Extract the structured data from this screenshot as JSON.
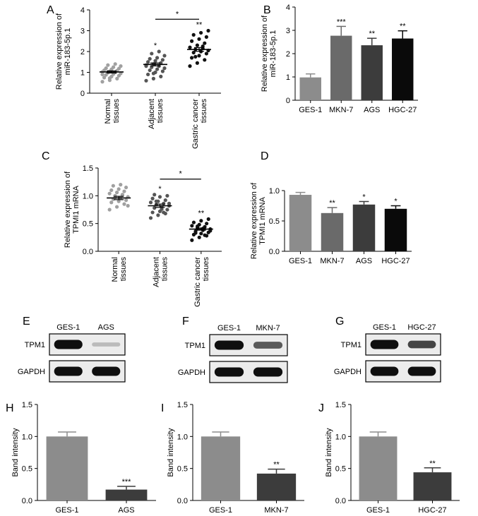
{
  "panel_letters": [
    "A",
    "B",
    "C",
    "D",
    "E",
    "F",
    "G",
    "H",
    "I",
    "J"
  ],
  "chart_data": [
    {
      "panel": "A",
      "type": "scatter",
      "ylabel": [
        "Relative expression of",
        "miR-183-5p.1"
      ],
      "ylim": [
        0,
        4
      ],
      "yticks": [
        0,
        1,
        2,
        3,
        4
      ],
      "categories": [
        [
          "Normal",
          "tissues"
        ],
        [
          "Adjacent",
          "tissues"
        ],
        [
          "Gastric cancer",
          "tissues"
        ]
      ],
      "groups": [
        {
          "mean": 1.02,
          "sem": 0.05,
          "marker_color": "#a0a0a0",
          "label": "",
          "points": [
            0.55,
            0.62,
            0.7,
            0.75,
            0.8,
            0.84,
            0.88,
            0.92,
            0.95,
            0.98,
            1.0,
            1.02,
            1.05,
            1.08,
            1.1,
            1.15,
            1.18,
            1.2,
            1.25,
            1.3,
            1.35,
            1.4,
            0.9,
            0.72
          ]
        },
        {
          "mean": 1.38,
          "sem": 0.07,
          "marker_color": "#555555",
          "label": "*",
          "points": [
            0.6,
            0.7,
            0.8,
            0.9,
            1.0,
            1.05,
            1.1,
            1.15,
            1.2,
            1.25,
            1.3,
            1.35,
            1.4,
            1.45,
            1.5,
            1.55,
            1.6,
            1.65,
            1.7,
            1.8,
            1.9,
            2.0,
            1.3,
            0.95
          ]
        },
        {
          "mean": 2.1,
          "sem": 0.09,
          "marker_color": "#111111",
          "label": "**",
          "points": [
            1.3,
            1.45,
            1.6,
            1.7,
            1.8,
            1.9,
            1.95,
            2.0,
            2.05,
            2.1,
            2.15,
            2.2,
            2.3,
            2.4,
            2.5,
            2.6,
            2.7,
            2.8,
            2.9,
            3.0,
            1.75,
            2.25
          ]
        }
      ],
      "bracket": {
        "from": 1,
        "to": 2,
        "y": 3.55,
        "label": "*"
      }
    },
    {
      "panel": "B",
      "type": "bar",
      "ylabel": [
        "Relative expression of",
        "miR-183-5p.1"
      ],
      "ylim": [
        0,
        4
      ],
      "yticks": [
        0,
        1,
        2,
        3,
        4
      ],
      "categories": [
        "GES-1",
        "MKN-7",
        "AGS",
        "HGC-27"
      ],
      "values": [
        0.98,
        2.77,
        2.36,
        2.65
      ],
      "errors": [
        0.15,
        0.4,
        0.3,
        0.33
      ],
      "labels": [
        "",
        "***",
        "**",
        "**"
      ],
      "colors": [
        "#8c8c8c",
        "#6a6a6a",
        "#3c3c3c",
        "#0a0a0a"
      ]
    },
    {
      "panel": "C",
      "type": "scatter",
      "ylabel": [
        "Relative expression of",
        "TPMI1 mRNA"
      ],
      "ylim": [
        0,
        1.5
      ],
      "yticks": [
        "0.0",
        "0.5",
        "1.0",
        "1.5"
      ],
      "categories": [
        [
          "Normal",
          "tissues"
        ],
        [
          "Adjacent",
          "tissues"
        ],
        [
          "Gastric cancer",
          "tissues"
        ]
      ],
      "groups": [
        {
          "mean": 0.96,
          "sem": 0.03,
          "marker_color": "#a0a0a0",
          "label": "",
          "points": [
            0.75,
            0.8,
            0.85,
            0.88,
            0.9,
            0.92,
            0.94,
            0.96,
            0.98,
            1.0,
            1.02,
            1.04,
            1.06,
            1.08,
            1.1,
            1.12,
            1.15,
            1.18,
            1.2,
            0.82,
            0.97,
            1.01
          ]
        },
        {
          "mean": 0.82,
          "sem": 0.03,
          "marker_color": "#555555",
          "label": "*",
          "points": [
            0.6,
            0.65,
            0.68,
            0.7,
            0.72,
            0.75,
            0.78,
            0.8,
            0.82,
            0.84,
            0.86,
            0.88,
            0.9,
            0.92,
            0.95,
            0.98,
            1.0,
            1.02,
            0.76,
            0.86,
            0.9,
            0.7
          ]
        },
        {
          "mean": 0.4,
          "sem": 0.02,
          "marker_color": "#111111",
          "label": "**",
          "points": [
            0.2,
            0.25,
            0.28,
            0.3,
            0.32,
            0.34,
            0.36,
            0.38,
            0.4,
            0.42,
            0.44,
            0.46,
            0.48,
            0.5,
            0.52,
            0.55,
            0.58,
            0.33,
            0.41,
            0.37,
            0.45,
            0.29
          ]
        }
      ],
      "bracket": {
        "from": 1,
        "to": 2,
        "y": 1.3,
        "label": "*"
      }
    },
    {
      "panel": "D",
      "type": "bar",
      "ylabel": [
        "Relative expression of",
        "TPMI1 mRNA"
      ],
      "ylim": [
        0,
        1.0
      ],
      "yticks": [
        "0.0",
        "0.5",
        "1.0"
      ],
      "categories": [
        "GES-1",
        "MKN-7",
        "AGS",
        "HGC-27"
      ],
      "values": [
        0.93,
        0.63,
        0.77,
        0.7
      ],
      "errors": [
        0.04,
        0.09,
        0.05,
        0.05
      ],
      "labels": [
        "",
        "**",
        "*",
        "*"
      ],
      "colors": [
        "#8c8c8c",
        "#6a6a6a",
        "#3c3c3c",
        "#0a0a0a"
      ]
    },
    {
      "panel": "H",
      "type": "bar",
      "ylabel": [
        "Band intensity"
      ],
      "ylim": [
        0,
        1.5
      ],
      "yticks": [
        "0.0",
        "0.5",
        "1.0",
        "1.5"
      ],
      "categories": [
        "GES-1",
        "AGS"
      ],
      "values": [
        1.0,
        0.17
      ],
      "errors": [
        0.07,
        0.05
      ],
      "labels": [
        "",
        "***"
      ],
      "colors": [
        "#8c8c8c",
        "#3c3c3c"
      ]
    },
    {
      "panel": "I",
      "type": "bar",
      "ylabel": [
        "Band intensity"
      ],
      "ylim": [
        0,
        1.5
      ],
      "yticks": [
        "0.0",
        "0.5",
        "1.0",
        "1.5"
      ],
      "categories": [
        "GES-1",
        "MKN-7"
      ],
      "values": [
        1.0,
        0.42
      ],
      "errors": [
        0.07,
        0.07
      ],
      "labels": [
        "",
        "**"
      ],
      "colors": [
        "#8c8c8c",
        "#3c3c3c"
      ]
    },
    {
      "panel": "J",
      "type": "bar",
      "ylabel": [
        "Band intensity"
      ],
      "ylim": [
        0,
        1.5
      ],
      "yticks": [
        "0.0",
        "0.5",
        "1.0",
        "1.5"
      ],
      "categories": [
        "GES-1",
        "HGC-27"
      ],
      "values": [
        1.0,
        0.44
      ],
      "errors": [
        0.07,
        0.07
      ],
      "labels": [
        "",
        "**"
      ],
      "colors": [
        "#8c8c8c",
        "#3c3c3c"
      ]
    }
  ],
  "blots": [
    {
      "panel": "E",
      "lanes": [
        "GES-1",
        "AGS"
      ],
      "rows": [
        "TPM1",
        "GAPDH"
      ],
      "intensity": [
        [
          1.0,
          0.2
        ],
        [
          1.0,
          1.0
        ]
      ]
    },
    {
      "panel": "F",
      "lanes": [
        "GES-1",
        "MKN-7"
      ],
      "rows": [
        "TPM1",
        "GAPDH"
      ],
      "intensity": [
        [
          1.0,
          0.65
        ],
        [
          1.0,
          1.0
        ]
      ]
    },
    {
      "panel": "G",
      "lanes": [
        "GES-1",
        "HGC-27"
      ],
      "rows": [
        "TPM1",
        "GAPDH"
      ],
      "intensity": [
        [
          1.0,
          0.75
        ],
        [
          1.0,
          1.0
        ]
      ]
    }
  ]
}
